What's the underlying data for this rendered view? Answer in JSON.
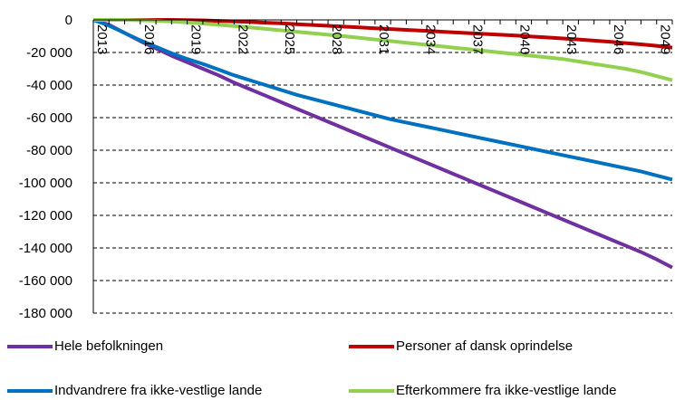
{
  "chart_data": {
    "type": "line",
    "title": "",
    "xlabel": "",
    "ylabel": "",
    "x": [
      2013,
      2014,
      2015,
      2016,
      2017,
      2018,
      2019,
      2020,
      2021,
      2022,
      2023,
      2024,
      2025,
      2026,
      2027,
      2028,
      2029,
      2030,
      2031,
      2032,
      2033,
      2034,
      2035,
      2036,
      2037,
      2038,
      2039,
      2040,
      2041,
      2042,
      2043,
      2044,
      2045,
      2046,
      2047,
      2048,
      2049,
      2050
    ],
    "x_tick_labels": [
      "2013",
      "2016",
      "2019",
      "2022",
      "2025",
      "2028",
      "2031",
      "2034",
      "2037",
      "2040",
      "2043",
      "2046",
      "2049"
    ],
    "ylim": [
      -180000,
      0
    ],
    "y_ticks": [
      0,
      -20000,
      -40000,
      -60000,
      -80000,
      -100000,
      -120000,
      -140000,
      -160000,
      -180000
    ],
    "y_tick_labels": [
      "0",
      "-20 000",
      "-40 000",
      "-60 000",
      "-80 000",
      "-100 000",
      "-120 000",
      "-140 000",
      "-160 000",
      "-180 000"
    ],
    "grid": "horizontal dashed",
    "legend_position": "bottom",
    "series": [
      {
        "name": "Hele befolkningen",
        "color": "#7030A0",
        "values": [
          0,
          -3000,
          -8000,
          -13000,
          -17500,
          -22000,
          -26000,
          -30000,
          -34000,
          -38500,
          -42500,
          -46500,
          -50500,
          -54500,
          -58500,
          -62500,
          -66500,
          -70500,
          -74500,
          -78500,
          -82500,
          -86500,
          -90500,
          -94500,
          -98500,
          -102500,
          -106500,
          -110500,
          -114500,
          -118500,
          -122500,
          -126500,
          -130500,
          -134500,
          -138500,
          -142500,
          -147000,
          -152000
        ]
      },
      {
        "name": "Personer af dansk oprindelse",
        "color": "#C00000",
        "values": [
          0,
          0,
          0,
          0,
          0,
          0,
          -100,
          -300,
          -600,
          -900,
          -1300,
          -1700,
          -2100,
          -2600,
          -3100,
          -3600,
          -4100,
          -4600,
          -5100,
          -5600,
          -6100,
          -6600,
          -7100,
          -7600,
          -8100,
          -8600,
          -9100,
          -9600,
          -10200,
          -10800,
          -11400,
          -12000,
          -12700,
          -13400,
          -14200,
          -15000,
          -15900,
          -17000
        ]
      },
      {
        "name": "Indvandrere fra ikke-vestlige lande",
        "color": "#0070C0",
        "values": [
          0,
          -3500,
          -8000,
          -12500,
          -16500,
          -20500,
          -24000,
          -27000,
          -30500,
          -34000,
          -37000,
          -40000,
          -43000,
          -46000,
          -48500,
          -51000,
          -53500,
          -56000,
          -58500,
          -61000,
          -63000,
          -65000,
          -67000,
          -69000,
          -71000,
          -73000,
          -75000,
          -77000,
          -79000,
          -81000,
          -83000,
          -85000,
          -87000,
          -89000,
          -91000,
          -93000,
          -95500,
          -98000
        ]
      },
      {
        "name": "Efterkommere fra ikke-vestlige lande",
        "color": "#92D050",
        "values": [
          0,
          0,
          0,
          -200,
          -500,
          -1000,
          -1500,
          -2200,
          -3000,
          -3800,
          -4600,
          -5500,
          -6400,
          -7300,
          -8200,
          -9100,
          -10000,
          -11000,
          -12000,
          -13000,
          -14000,
          -15000,
          -16000,
          -17000,
          -18000,
          -19000,
          -20000,
          -21000,
          -22000,
          -23000,
          -24000,
          -25500,
          -27000,
          -28500,
          -30000,
          -32000,
          -34500,
          -37000
        ]
      }
    ]
  }
}
